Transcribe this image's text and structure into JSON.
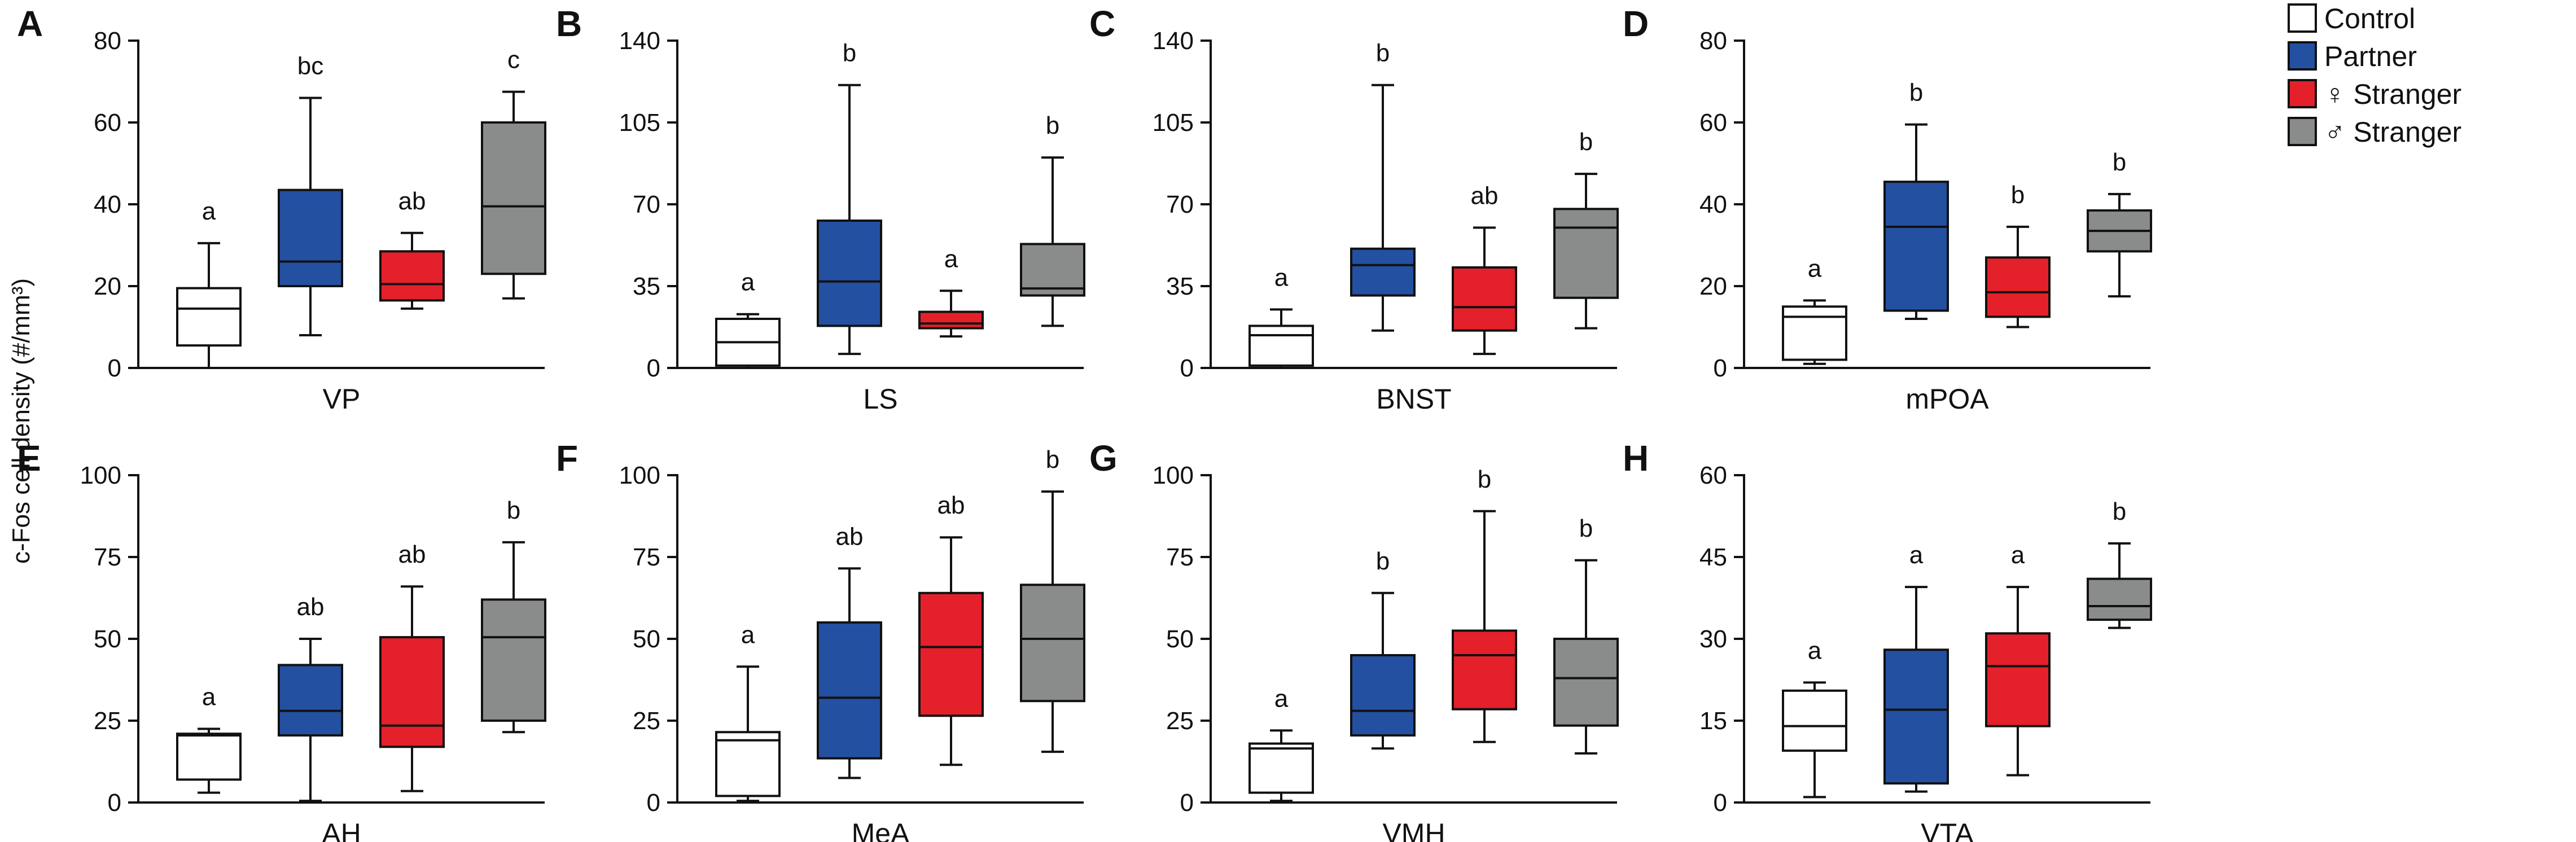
{
  "figure": {
    "ylabel": "c-Fos cell density (#/mm³)",
    "legend": [
      {
        "label": "Control",
        "color": "#ffffff"
      },
      {
        "label": "Partner",
        "color": "#2450a2"
      },
      {
        "label": "♀ Stranger",
        "color": "#e4202a"
      },
      {
        "label": "♂ Stranger",
        "color": "#8a8c8c"
      }
    ]
  },
  "chart_data": [
    {
      "type": "box",
      "panel": "A",
      "region": "VP",
      "ylim": [
        0,
        80
      ],
      "ticks": [
        0,
        20,
        40,
        60,
        80
      ],
      "tick_labels": [
        "0",
        "20",
        "40",
        "60",
        "80"
      ],
      "series": [
        {
          "name": "Control",
          "min": 0,
          "q1": 5.5,
          "median": 14.5,
          "q3": 19.5,
          "max": 30.5,
          "letter": "a"
        },
        {
          "name": "Partner",
          "min": 8,
          "q1": 20,
          "median": 26,
          "q3": 43.5,
          "max": 66,
          "letter": "bc"
        },
        {
          "name": "♀ Stranger",
          "min": 14.5,
          "q1": 16.5,
          "median": 20.5,
          "q3": 28.5,
          "max": 33,
          "letter": "ab"
        },
        {
          "name": "♂ Stranger",
          "min": 17,
          "q1": 23,
          "median": 39.5,
          "q3": 60,
          "max": 67.5,
          "letter": "c"
        }
      ]
    },
    {
      "type": "box",
      "panel": "B",
      "region": "LS",
      "ylim": [
        0,
        140
      ],
      "ticks": [
        0,
        35,
        70,
        105,
        140
      ],
      "tick_labels": [
        "0",
        "35",
        "70",
        "105",
        "140"
      ],
      "series": [
        {
          "name": "Control",
          "min": 0,
          "q1": 1,
          "median": 11,
          "q3": 21,
          "max": 23,
          "letter": "a"
        },
        {
          "name": "Partner",
          "min": 6,
          "q1": 18,
          "median": 37,
          "q3": 63,
          "max": 121,
          "letter": "b"
        },
        {
          "name": "♀ Stranger",
          "min": 13.5,
          "q1": 17,
          "median": 19,
          "q3": 24,
          "max": 33,
          "letter": "a"
        },
        {
          "name": "♂ Stranger",
          "min": 18,
          "q1": 31,
          "median": 34,
          "q3": 53,
          "max": 90,
          "letter": "b"
        }
      ]
    },
    {
      "type": "box",
      "panel": "C",
      "region": "BNST",
      "ylim": [
        0,
        140
      ],
      "ticks": [
        0,
        35,
        70,
        105,
        140
      ],
      "tick_labels": [
        "0",
        "35",
        "70",
        "105",
        "140"
      ],
      "series": [
        {
          "name": "Control",
          "min": 0,
          "q1": 1,
          "median": 14,
          "q3": 18,
          "max": 25,
          "letter": "a"
        },
        {
          "name": "Partner",
          "min": 16,
          "q1": 31,
          "median": 44,
          "q3": 51,
          "max": 121,
          "letter": "b"
        },
        {
          "name": "♀ Stranger",
          "min": 6,
          "q1": 16,
          "median": 26,
          "q3": 43,
          "max": 60,
          "letter": "ab"
        },
        {
          "name": "♂ Stranger",
          "min": 17,
          "q1": 30,
          "median": 60,
          "q3": 68,
          "max": 83,
          "letter": "b"
        }
      ]
    },
    {
      "type": "box",
      "panel": "D",
      "region": "mPOA",
      "ylim": [
        0,
        80
      ],
      "ticks": [
        0,
        20,
        40,
        60,
        80
      ],
      "tick_labels": [
        "0",
        "20",
        "40",
        "60",
        "80"
      ],
      "series": [
        {
          "name": "Control",
          "min": 1,
          "q1": 2,
          "median": 12.5,
          "q3": 15,
          "max": 16.5,
          "letter": "a"
        },
        {
          "name": "Partner",
          "min": 12,
          "q1": 14,
          "median": 34.5,
          "q3": 45.5,
          "max": 59.5,
          "letter": "b"
        },
        {
          "name": "♀ Stranger",
          "min": 10,
          "q1": 12.5,
          "median": 18.5,
          "q3": 27,
          "max": 34.5,
          "letter": "b"
        },
        {
          "name": "♂ Stranger",
          "min": 17.5,
          "q1": 28.5,
          "median": 33.5,
          "q3": 38.5,
          "max": 42.5,
          "letter": "b"
        }
      ]
    },
    {
      "type": "box",
      "panel": "E",
      "region": "AH",
      "ylim": [
        0,
        100
      ],
      "ticks": [
        0,
        25,
        50,
        75,
        100
      ],
      "tick_labels": [
        "0",
        "25",
        "50",
        "75",
        "100"
      ],
      "series": [
        {
          "name": "Control",
          "min": 3,
          "q1": 7,
          "median": 20.5,
          "q3": 21,
          "max": 22.5,
          "letter": "a"
        },
        {
          "name": "Partner",
          "min": 0.5,
          "q1": 20.5,
          "median": 28,
          "q3": 42,
          "max": 50,
          "letter": "ab"
        },
        {
          "name": "♀ Stranger",
          "min": 3.5,
          "q1": 17,
          "median": 23.5,
          "q3": 50.5,
          "max": 66,
          "letter": "ab"
        },
        {
          "name": "♂ Stranger",
          "min": 21.5,
          "q1": 25,
          "median": 50.5,
          "q3": 62,
          "max": 79.5,
          "letter": "b"
        }
      ]
    },
    {
      "type": "box",
      "panel": "F",
      "region": "MeA",
      "ylim": [
        0,
        100
      ],
      "ticks": [
        0,
        25,
        50,
        75,
        100
      ],
      "tick_labels": [
        "0",
        "25",
        "50",
        "75",
        "100"
      ],
      "series": [
        {
          "name": "Control",
          "min": 0.5,
          "q1": 2,
          "median": 19,
          "q3": 21.5,
          "max": 41.5,
          "letter": "a"
        },
        {
          "name": "Partner",
          "min": 7.5,
          "q1": 13.5,
          "median": 32,
          "q3": 55,
          "max": 71.5,
          "letter": "ab"
        },
        {
          "name": "♀ Stranger",
          "min": 11.5,
          "q1": 26.5,
          "median": 47.5,
          "q3": 64,
          "max": 81,
          "letter": "ab"
        },
        {
          "name": "♂ Stranger",
          "min": 15.5,
          "q1": 31,
          "median": 50,
          "q3": 66.5,
          "max": 95,
          "letter": "b"
        }
      ]
    },
    {
      "type": "box",
      "panel": "G",
      "region": "VMH",
      "ylim": [
        0,
        100
      ],
      "ticks": [
        0,
        25,
        50,
        75,
        100
      ],
      "tick_labels": [
        "0",
        "25",
        "50",
        "75",
        "100"
      ],
      "series": [
        {
          "name": "Control",
          "min": 0.5,
          "q1": 3,
          "median": 16.5,
          "q3": 18,
          "max": 22,
          "letter": "a"
        },
        {
          "name": "Partner",
          "min": 16.5,
          "q1": 20.5,
          "median": 28,
          "q3": 45,
          "max": 64,
          "letter": "b"
        },
        {
          "name": "♀ Stranger",
          "min": 18.5,
          "q1": 28.5,
          "median": 45,
          "q3": 52.5,
          "max": 89,
          "letter": "b"
        },
        {
          "name": "♂ Stranger",
          "min": 15,
          "q1": 23.5,
          "median": 38,
          "q3": 50,
          "max": 74,
          "letter": "b"
        }
      ]
    },
    {
      "type": "box",
      "panel": "H",
      "region": "VTA",
      "ylim": [
        0,
        60
      ],
      "ticks": [
        0,
        15,
        30,
        45,
        60
      ],
      "tick_labels": [
        "0",
        "15",
        "30",
        "45",
        "60"
      ],
      "series": [
        {
          "name": "Control",
          "min": 1,
          "q1": 9.5,
          "median": 14,
          "q3": 20.5,
          "max": 22,
          "letter": "a"
        },
        {
          "name": "Partner",
          "min": 2,
          "q1": 3.5,
          "median": 17,
          "q3": 28,
          "max": 39.5,
          "letter": "a"
        },
        {
          "name": "♀ Stranger",
          "min": 5,
          "q1": 14,
          "median": 25,
          "q3": 31,
          "max": 39.5,
          "letter": "a"
        },
        {
          "name": "♂ Stranger",
          "min": 32,
          "q1": 33.5,
          "median": 36,
          "q3": 41,
          "max": 47.5,
          "letter": "b"
        }
      ]
    }
  ]
}
